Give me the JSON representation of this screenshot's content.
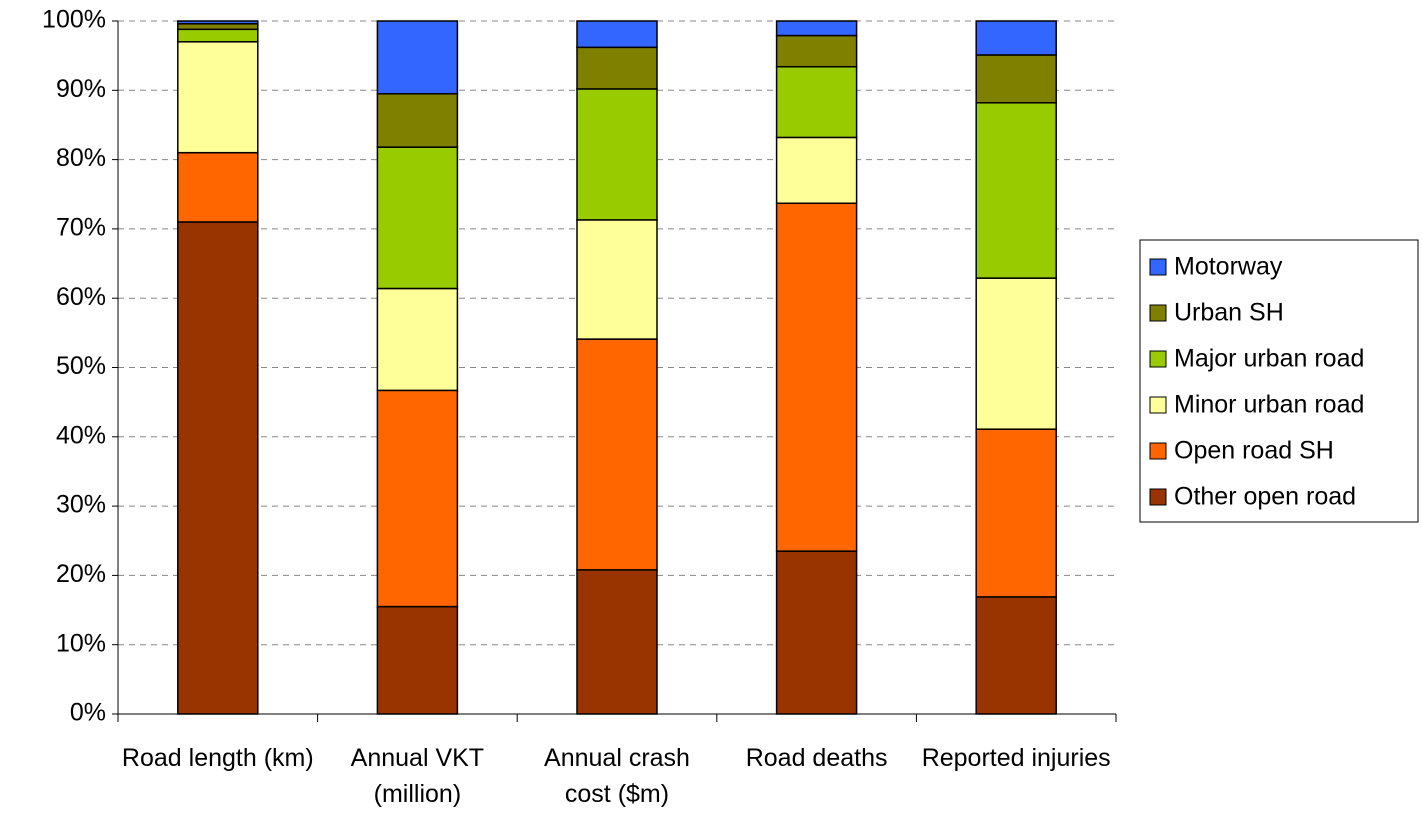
{
  "chart_data": {
    "type": "stacked_bar_100",
    "categories": [
      "Road length (km)",
      "Annual VKT (million)",
      "Annual crash cost ($m)",
      "Road deaths",
      "Reported injuries"
    ],
    "series": [
      {
        "name": "Other open road",
        "color": "#993300",
        "values": [
          71.0,
          15.5,
          20.8,
          23.5,
          16.9
        ]
      },
      {
        "name": "Open road SH",
        "color": "#FF6600",
        "values": [
          10.0,
          31.2,
          33.3,
          50.2,
          24.2
        ]
      },
      {
        "name": "Minor urban road",
        "color": "#FFFF99",
        "values": [
          16.0,
          14.7,
          17.2,
          9.5,
          21.8
        ]
      },
      {
        "name": "Major urban road",
        "color": "#99CC00",
        "values": [
          1.8,
          20.4,
          18.9,
          10.2,
          25.3
        ]
      },
      {
        "name": "Urban SH",
        "color": "#808000",
        "values": [
          0.8,
          7.7,
          6.0,
          4.5,
          6.9
        ]
      },
      {
        "name": "Motorway",
        "color": "#3366FF",
        "values": [
          0.4,
          10.5,
          3.8,
          2.1,
          4.9
        ]
      }
    ],
    "ylim": [
      0,
      100
    ],
    "yticks": [
      {
        "value": 0,
        "label": "0%"
      },
      {
        "value": 10,
        "label": "10%"
      },
      {
        "value": 20,
        "label": "20%"
      },
      {
        "value": 30,
        "label": "30%"
      },
      {
        "value": 40,
        "label": "40%"
      },
      {
        "value": 50,
        "label": "50%"
      },
      {
        "value": 60,
        "label": "60%"
      },
      {
        "value": 70,
        "label": "70%"
      },
      {
        "value": 80,
        "label": "80%"
      },
      {
        "value": 90,
        "label": "90%"
      },
      {
        "value": 100,
        "label": "100%"
      }
    ],
    "grid": true,
    "legend": "right"
  }
}
